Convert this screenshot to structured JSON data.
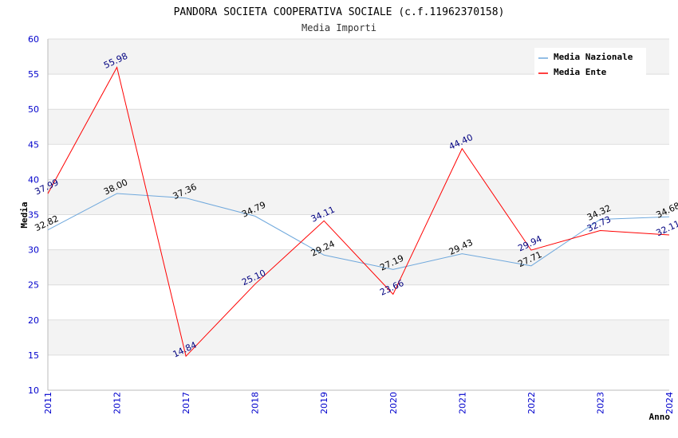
{
  "chart_data": {
    "type": "line",
    "title": "PANDORA SOCIETA COOPERATIVA SOCIALE (c.f.11962370158)",
    "subtitle": "Media Importi",
    "xlabel": "Anno",
    "ylabel": "Media",
    "ylim": [
      10,
      60
    ],
    "yticks": [
      10,
      15,
      20,
      25,
      30,
      35,
      40,
      45,
      50,
      55,
      60
    ],
    "categories": [
      "2011",
      "2012",
      "2017",
      "2018",
      "2019",
      "2020",
      "2021",
      "2022",
      "2023",
      "2024"
    ],
    "series": [
      {
        "name": "Media Nazionale",
        "color": "#6fa8dc",
        "label_color": "#000000",
        "values": [
          32.82,
          38.0,
          37.36,
          34.79,
          29.24,
          27.19,
          29.43,
          27.71,
          34.32,
          34.68
        ],
        "labels": [
          "32.82",
          "38.00",
          "37.36",
          "34.79",
          "29.24",
          "27.19",
          "29.43",
          "27.71",
          "34.32",
          "34.68"
        ]
      },
      {
        "name": "Media Ente",
        "color": "#ff0000",
        "label_color": "#000080",
        "values": [
          37.99,
          55.98,
          14.84,
          25.1,
          34.11,
          23.66,
          44.4,
          29.94,
          32.73,
          32.11
        ],
        "labels": [
          "37.99",
          "55.98",
          "14.84",
          "25.10",
          "34.11",
          "23.66",
          "44.40",
          "29.94",
          "32.73",
          "32.11"
        ]
      }
    ],
    "grid": true,
    "legend": "top-right"
  }
}
